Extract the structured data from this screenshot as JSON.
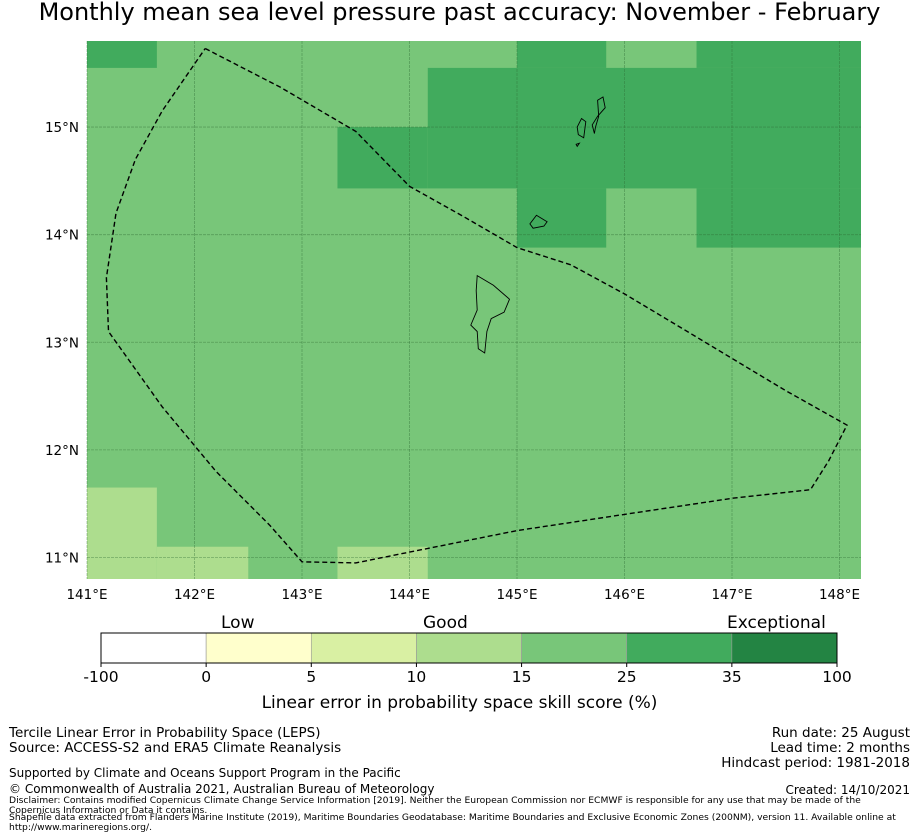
{
  "title": "Monthly mean sea level pressure past accuracy: November - February",
  "map": {
    "lon_range": [
      141.0,
      148.2
    ],
    "lat_range": [
      10.8,
      15.8
    ],
    "grid": true,
    "lon_ticks": [
      {
        "value": 141,
        "label": "141°E"
      },
      {
        "value": 142,
        "label": "142°E"
      },
      {
        "value": 143,
        "label": "143°E"
      },
      {
        "value": 144,
        "label": "144°E"
      },
      {
        "value": 145,
        "label": "145°E"
      },
      {
        "value": 146,
        "label": "146°E"
      },
      {
        "value": 147,
        "label": "147°E"
      },
      {
        "value": 148,
        "label": "148°E"
      }
    ],
    "lat_ticks": [
      {
        "value": 11,
        "label": "11°N"
      },
      {
        "value": 12,
        "label": "12°N"
      },
      {
        "value": 13,
        "label": "13°N"
      },
      {
        "value": 14,
        "label": "14°N"
      },
      {
        "value": 15,
        "label": "15°N"
      }
    ],
    "default_skill_class": "15-25",
    "cells": [
      {
        "lon0": 141.0,
        "lon1": 141.65,
        "lat0": 15.55,
        "lat1": 15.8,
        "class": "25-35"
      },
      {
        "lon0": 145.0,
        "lon1": 145.83,
        "lat0": 15.55,
        "lat1": 15.8,
        "class": "25-35"
      },
      {
        "lon0": 146.67,
        "lon1": 148.2,
        "lat0": 15.55,
        "lat1": 15.8,
        "class": "25-35"
      },
      {
        "lon0": 144.17,
        "lon1": 148.2,
        "lat0": 14.43,
        "lat1": 15.55,
        "class": "25-35"
      },
      {
        "lon0": 143.33,
        "lon1": 144.17,
        "lat0": 14.43,
        "lat1": 15.0,
        "class": "25-35"
      },
      {
        "lon0": 145.0,
        "lon1": 145.83,
        "lat0": 13.88,
        "lat1": 14.43,
        "class": "25-35"
      },
      {
        "lon0": 146.67,
        "lon1": 148.2,
        "lat0": 13.88,
        "lat1": 14.43,
        "class": "25-35"
      },
      {
        "lon0": 141.0,
        "lon1": 141.65,
        "lat0": 10.8,
        "lat1": 11.65,
        "class": "10-15"
      },
      {
        "lon0": 141.65,
        "lon1": 142.5,
        "lat0": 10.8,
        "lat1": 11.1,
        "class": "10-15"
      },
      {
        "lon0": 143.33,
        "lon1": 144.17,
        "lat0": 10.8,
        "lat1": 11.1,
        "class": "10-15"
      }
    ],
    "eez_boundary": [
      [
        142.1,
        15.73
      ],
      [
        142.8,
        15.37
      ],
      [
        143.5,
        14.96
      ],
      [
        144.0,
        14.45
      ],
      [
        144.5,
        14.17
      ],
      [
        145.0,
        13.88
      ],
      [
        145.5,
        13.72
      ],
      [
        146.0,
        13.45
      ],
      [
        146.5,
        13.15
      ],
      [
        147.0,
        12.85
      ],
      [
        147.5,
        12.55
      ],
      [
        148.07,
        12.23
      ],
      [
        147.9,
        11.9
      ],
      [
        147.73,
        11.63
      ],
      [
        147.0,
        11.55
      ],
      [
        146.0,
        11.4
      ],
      [
        145.0,
        11.25
      ],
      [
        144.0,
        11.05
      ],
      [
        143.5,
        10.95
      ],
      [
        143.0,
        10.96
      ],
      [
        142.7,
        11.3
      ],
      [
        142.2,
        11.8
      ],
      [
        141.7,
        12.4
      ],
      [
        141.2,
        13.1
      ],
      [
        141.18,
        13.6
      ],
      [
        141.27,
        14.2
      ],
      [
        141.45,
        14.7
      ],
      [
        141.7,
        15.15
      ],
      [
        142.1,
        15.73
      ]
    ],
    "islands": [
      [
        [
          144.63,
          13.62
        ],
        [
          144.78,
          13.53
        ],
        [
          144.93,
          13.4
        ],
        [
          144.88,
          13.28
        ],
        [
          144.76,
          13.22
        ],
        [
          144.72,
          13.1
        ],
        [
          144.7,
          12.9
        ],
        [
          144.64,
          12.94
        ],
        [
          144.63,
          13.1
        ],
        [
          144.57,
          13.16
        ],
        [
          144.63,
          13.3
        ],
        [
          144.62,
          13.48
        ],
        [
          144.63,
          13.62
        ]
      ],
      [
        [
          145.18,
          14.18
        ],
        [
          145.28,
          14.12
        ],
        [
          145.25,
          14.08
        ],
        [
          145.15,
          14.06
        ],
        [
          145.12,
          14.1
        ],
        [
          145.18,
          14.18
        ]
      ],
      [
        [
          145.75,
          15.25
        ],
        [
          145.8,
          15.28
        ],
        [
          145.82,
          15.18
        ],
        [
          145.75,
          15.1
        ],
        [
          145.7,
          15.02
        ],
        [
          145.72,
          14.94
        ],
        [
          145.73,
          15.0
        ],
        [
          145.76,
          15.1
        ],
        [
          145.75,
          15.25
        ]
      ],
      [
        [
          145.6,
          15.08
        ],
        [
          145.64,
          15.05
        ],
        [
          145.62,
          14.9
        ],
        [
          145.57,
          14.93
        ],
        [
          145.56,
          15.0
        ],
        [
          145.6,
          15.08
        ]
      ],
      [
        [
          145.55,
          14.84
        ],
        [
          145.58,
          14.85
        ],
        [
          145.56,
          14.82
        ],
        [
          145.55,
          14.84
        ]
      ]
    ]
  },
  "colorbar": {
    "ticks": [
      "-100",
      "0",
      "5",
      "10",
      "15",
      "25",
      "35",
      "100"
    ],
    "classes": [
      {
        "key": "-100-0",
        "color": "#ffffff"
      },
      {
        "key": "0-5",
        "color": "#ffffcc"
      },
      {
        "key": "5-10",
        "color": "#d9f0a3"
      },
      {
        "key": "10-15",
        "color": "#addd8e"
      },
      {
        "key": "15-25",
        "color": "#78c679"
      },
      {
        "key": "25-35",
        "color": "#41ab5d"
      },
      {
        "key": "35-100",
        "color": "#238443"
      }
    ],
    "category_labels": {
      "low": "Low",
      "good": "Good",
      "exceptional": "Exceptional"
    },
    "label": "Linear error in probability space skill score (%)"
  },
  "footer": {
    "left": [
      "Tercile Linear Error in Probability Space (LEPS)",
      "Source: ACCESS-S2 and ERA5 Climate Reanalysis"
    ],
    "supported": "Supported by Climate and Oceans Support Program in the Pacific",
    "copyright": "© Commonwealth of Australia 2021, Australian Bureau of Meteorology",
    "disclaimer": [
      "Disclaimer: Contains modified Copernicus Climate Change Service Information [2019]. Neither the European Commission nor ECMWF is responsible for any use that may be made of the",
      "Copernicus Information or Data it contains.",
      "Shapefile data extracted from Flanders Marine Institute (2019), Maritime Boundaries Geodatabase: Maritime Boundaries and Exclusive Economic Zones (200NM), version 11. Available online at",
      "http://www.marineregions.org/."
    ],
    "right": [
      "Run date: 25 August",
      "Lead time: 2 months",
      "Hindcast period: 1981-2018"
    ],
    "created": "Created: 14/10/2021"
  }
}
